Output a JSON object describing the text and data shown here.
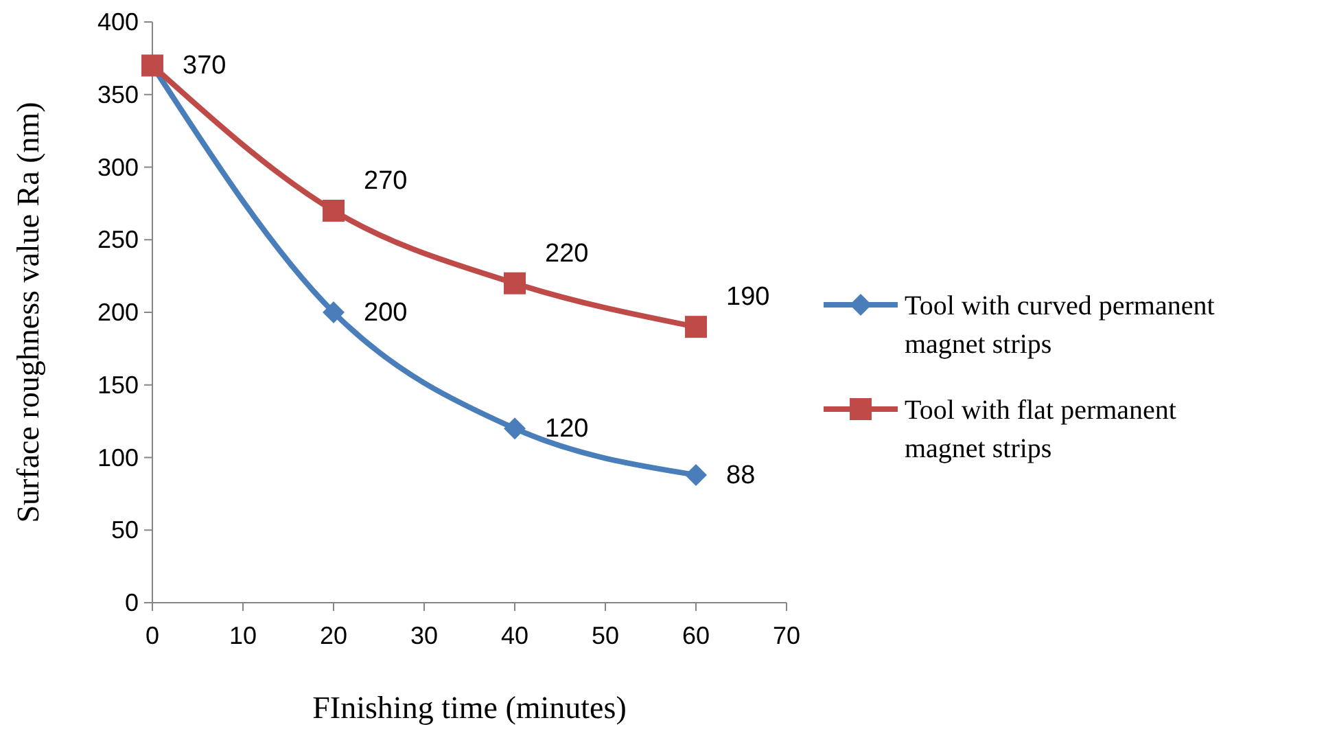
{
  "chart_data": {
    "type": "line",
    "xlabel": "FInishing time (minutes)",
    "ylabel": "Surface roughness value Ra (nm)",
    "x": [
      0,
      20,
      40,
      60
    ],
    "series": [
      {
        "name": "Tool with curved permanent magnet strips",
        "color": "#4a7ebb",
        "marker": "diamond",
        "values": [
          370,
          200,
          120,
          88
        ],
        "value_labels": [
          null,
          "200",
          "120",
          "88"
        ]
      },
      {
        "name": "Tool with flat permanent magnet strips",
        "color": "#be4b48",
        "marker": "square",
        "values": [
          370,
          270,
          220,
          190
        ],
        "value_labels": [
          "370",
          "270",
          "220",
          "190"
        ]
      }
    ],
    "xlim": [
      0,
      70
    ],
    "xticks": [
      0,
      10,
      20,
      30,
      40,
      50,
      60,
      70
    ],
    "ylim": [
      0,
      400
    ],
    "yticks": [
      0,
      50,
      100,
      150,
      200,
      250,
      300,
      350,
      400
    ],
    "grid": false,
    "legend": "right"
  }
}
